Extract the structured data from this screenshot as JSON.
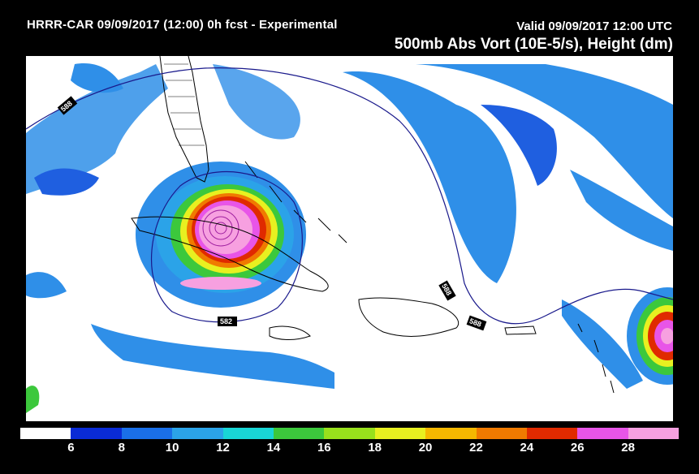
{
  "header": {
    "model_title": "HRRR-CAR 09/09/2017 (12:00) 0h fcst - Experimental",
    "valid_time": "Valid 09/09/2017 12:00 UTC",
    "field_title": "500mb Abs Vort (10E-5/s), Height (dm)"
  },
  "contours": {
    "label_588_a": "588",
    "label_588_b": "588",
    "label_588_c": "588",
    "label_582": "582"
  },
  "colorbar": {
    "labels": [
      "6",
      "8",
      "10",
      "12",
      "14",
      "16",
      "18",
      "20",
      "22",
      "24",
      "26",
      "28"
    ],
    "colors": [
      "#ffffff",
      "#0a2bd6",
      "#1a6fe8",
      "#2ba3e8",
      "#19d6d6",
      "#3cc83c",
      "#98e01c",
      "#e8f020",
      "#f5b800",
      "#f07a00",
      "#e02a00",
      "#e855e8",
      "#f7a0e0"
    ]
  }
}
